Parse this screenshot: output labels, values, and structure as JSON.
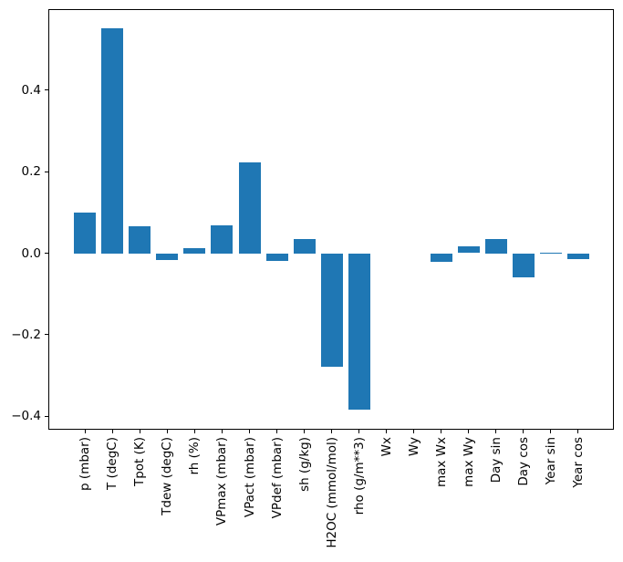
{
  "figure": {
    "background": "#ffffff",
    "spine_color": "#000000",
    "tick_color": "#000000",
    "text_color": "#000000"
  },
  "chart_data": {
    "type": "bar",
    "title": "",
    "xlabel": "",
    "ylabel": "",
    "grid": false,
    "legend": false,
    "bar_color": "#1f77b4",
    "bar_width": 0.8,
    "xlim": [
      -1.34,
      19.3
    ],
    "ylim": [
      -0.433,
      0.599
    ],
    "yticks": [
      -0.4,
      -0.2,
      0.0,
      0.2,
      0.4
    ],
    "ytick_labels": [
      "−0.4",
      "−0.2",
      "0.0",
      "0.2",
      "0.4"
    ],
    "categories": [
      "p (mbar)",
      "T (degC)",
      "Tpot (K)",
      "Tdew (degC)",
      "rh (%)",
      "VPmax (mbar)",
      "VPact (mbar)",
      "VPdef (mbar)",
      "sh (g/kg)",
      "H2OC (mmol/mol)",
      "rho (g/m**3)",
      "Wx",
      "Wy",
      "max Wx",
      "max Wy",
      "Day sin",
      "Day cos",
      "Year sin",
      "Year cos"
    ],
    "values": [
      0.1,
      0.553,
      0.066,
      -0.016,
      0.013,
      0.069,
      0.222,
      -0.02,
      0.034,
      -0.278,
      -0.384,
      0.0,
      0.0,
      -0.022,
      0.016,
      0.036,
      -0.06,
      0.002,
      -0.015
    ]
  }
}
